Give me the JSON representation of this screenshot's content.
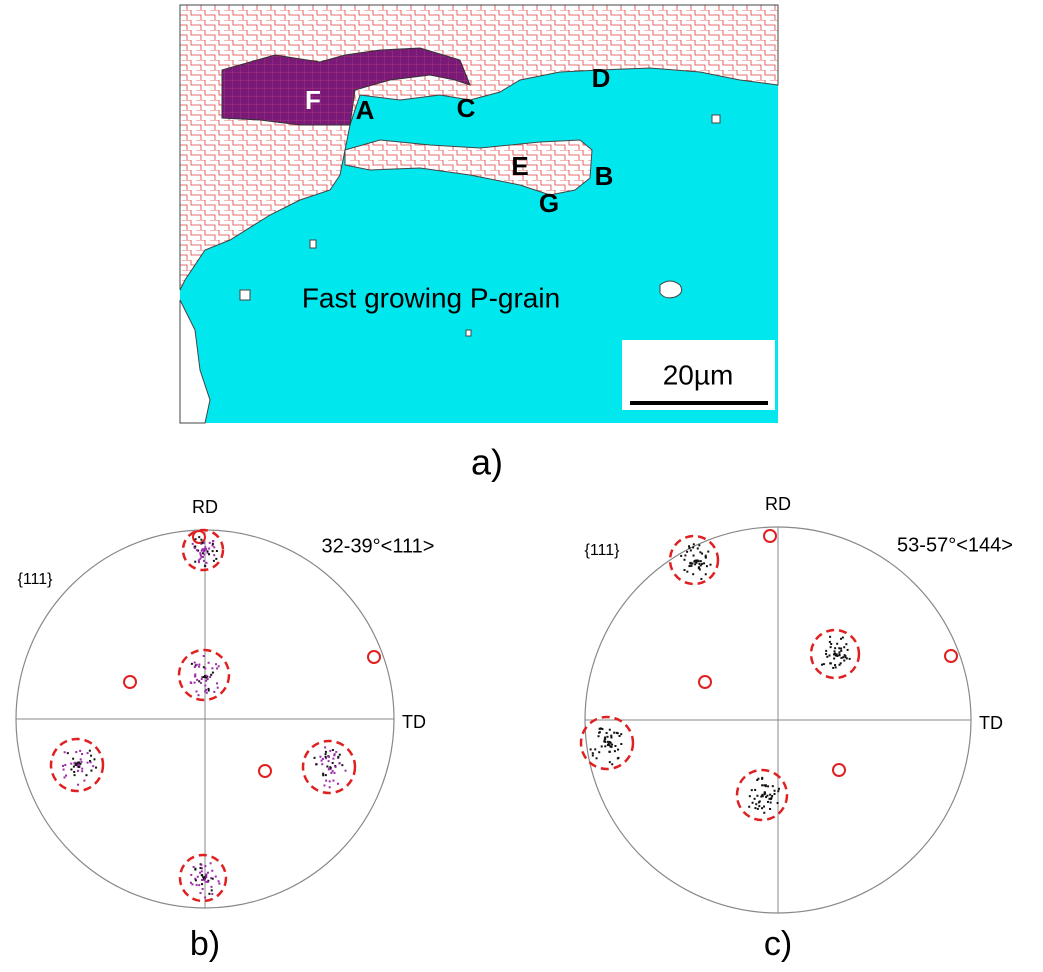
{
  "panel_a": {
    "labels": [
      "F",
      "A",
      "C",
      "D",
      "E",
      "B",
      "G"
    ],
    "annotation": "Fast growing P-grain",
    "scale_bar": "20µm",
    "caption": "a)"
  },
  "panel_b": {
    "plane": "{111}",
    "axis_top": "RD",
    "axis_right": "TD",
    "misorientation": "32-39°<111>",
    "caption": "b)"
  },
  "panel_c": {
    "plane": "{111}",
    "axis_top": "RD",
    "axis_right": "TD",
    "misorientation": "53-57°<144>",
    "caption": "c)"
  }
}
